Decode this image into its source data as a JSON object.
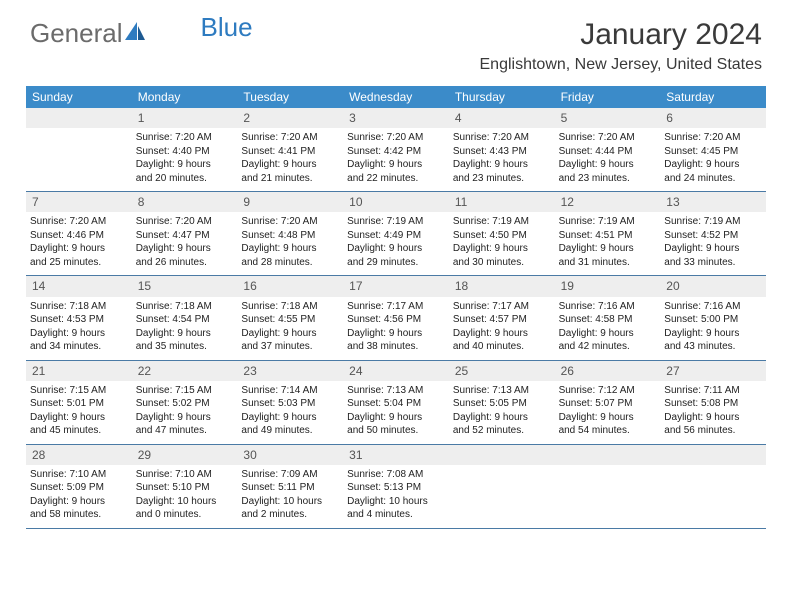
{
  "logo": {
    "text1": "General",
    "text2": "Blue"
  },
  "title": "January 2024",
  "location": "Englishtown, New Jersey, United States",
  "colors": {
    "header_bg": "#3b8bc9",
    "header_text": "#ffffff",
    "daynum_bg": "#eeeeee",
    "week_border": "#4a7aa5",
    "logo_gray": "#6b6b6b",
    "logo_blue": "#2e7bc0"
  },
  "dayHeaders": [
    "Sunday",
    "Monday",
    "Tuesday",
    "Wednesday",
    "Thursday",
    "Friday",
    "Saturday"
  ],
  "weeks": [
    [
      null,
      {
        "n": "1",
        "sr": "Sunrise: 7:20 AM",
        "ss": "Sunset: 4:40 PM",
        "d1": "Daylight: 9 hours",
        "d2": "and 20 minutes."
      },
      {
        "n": "2",
        "sr": "Sunrise: 7:20 AM",
        "ss": "Sunset: 4:41 PM",
        "d1": "Daylight: 9 hours",
        "d2": "and 21 minutes."
      },
      {
        "n": "3",
        "sr": "Sunrise: 7:20 AM",
        "ss": "Sunset: 4:42 PM",
        "d1": "Daylight: 9 hours",
        "d2": "and 22 minutes."
      },
      {
        "n": "4",
        "sr": "Sunrise: 7:20 AM",
        "ss": "Sunset: 4:43 PM",
        "d1": "Daylight: 9 hours",
        "d2": "and 23 minutes."
      },
      {
        "n": "5",
        "sr": "Sunrise: 7:20 AM",
        "ss": "Sunset: 4:44 PM",
        "d1": "Daylight: 9 hours",
        "d2": "and 23 minutes."
      },
      {
        "n": "6",
        "sr": "Sunrise: 7:20 AM",
        "ss": "Sunset: 4:45 PM",
        "d1": "Daylight: 9 hours",
        "d2": "and 24 minutes."
      }
    ],
    [
      {
        "n": "7",
        "sr": "Sunrise: 7:20 AM",
        "ss": "Sunset: 4:46 PM",
        "d1": "Daylight: 9 hours",
        "d2": "and 25 minutes."
      },
      {
        "n": "8",
        "sr": "Sunrise: 7:20 AM",
        "ss": "Sunset: 4:47 PM",
        "d1": "Daylight: 9 hours",
        "d2": "and 26 minutes."
      },
      {
        "n": "9",
        "sr": "Sunrise: 7:20 AM",
        "ss": "Sunset: 4:48 PM",
        "d1": "Daylight: 9 hours",
        "d2": "and 28 minutes."
      },
      {
        "n": "10",
        "sr": "Sunrise: 7:19 AM",
        "ss": "Sunset: 4:49 PM",
        "d1": "Daylight: 9 hours",
        "d2": "and 29 minutes."
      },
      {
        "n": "11",
        "sr": "Sunrise: 7:19 AM",
        "ss": "Sunset: 4:50 PM",
        "d1": "Daylight: 9 hours",
        "d2": "and 30 minutes."
      },
      {
        "n": "12",
        "sr": "Sunrise: 7:19 AM",
        "ss": "Sunset: 4:51 PM",
        "d1": "Daylight: 9 hours",
        "d2": "and 31 minutes."
      },
      {
        "n": "13",
        "sr": "Sunrise: 7:19 AM",
        "ss": "Sunset: 4:52 PM",
        "d1": "Daylight: 9 hours",
        "d2": "and 33 minutes."
      }
    ],
    [
      {
        "n": "14",
        "sr": "Sunrise: 7:18 AM",
        "ss": "Sunset: 4:53 PM",
        "d1": "Daylight: 9 hours",
        "d2": "and 34 minutes."
      },
      {
        "n": "15",
        "sr": "Sunrise: 7:18 AM",
        "ss": "Sunset: 4:54 PM",
        "d1": "Daylight: 9 hours",
        "d2": "and 35 minutes."
      },
      {
        "n": "16",
        "sr": "Sunrise: 7:18 AM",
        "ss": "Sunset: 4:55 PM",
        "d1": "Daylight: 9 hours",
        "d2": "and 37 minutes."
      },
      {
        "n": "17",
        "sr": "Sunrise: 7:17 AM",
        "ss": "Sunset: 4:56 PM",
        "d1": "Daylight: 9 hours",
        "d2": "and 38 minutes."
      },
      {
        "n": "18",
        "sr": "Sunrise: 7:17 AM",
        "ss": "Sunset: 4:57 PM",
        "d1": "Daylight: 9 hours",
        "d2": "and 40 minutes."
      },
      {
        "n": "19",
        "sr": "Sunrise: 7:16 AM",
        "ss": "Sunset: 4:58 PM",
        "d1": "Daylight: 9 hours",
        "d2": "and 42 minutes."
      },
      {
        "n": "20",
        "sr": "Sunrise: 7:16 AM",
        "ss": "Sunset: 5:00 PM",
        "d1": "Daylight: 9 hours",
        "d2": "and 43 minutes."
      }
    ],
    [
      {
        "n": "21",
        "sr": "Sunrise: 7:15 AM",
        "ss": "Sunset: 5:01 PM",
        "d1": "Daylight: 9 hours",
        "d2": "and 45 minutes."
      },
      {
        "n": "22",
        "sr": "Sunrise: 7:15 AM",
        "ss": "Sunset: 5:02 PM",
        "d1": "Daylight: 9 hours",
        "d2": "and 47 minutes."
      },
      {
        "n": "23",
        "sr": "Sunrise: 7:14 AM",
        "ss": "Sunset: 5:03 PM",
        "d1": "Daylight: 9 hours",
        "d2": "and 49 minutes."
      },
      {
        "n": "24",
        "sr": "Sunrise: 7:13 AM",
        "ss": "Sunset: 5:04 PM",
        "d1": "Daylight: 9 hours",
        "d2": "and 50 minutes."
      },
      {
        "n": "25",
        "sr": "Sunrise: 7:13 AM",
        "ss": "Sunset: 5:05 PM",
        "d1": "Daylight: 9 hours",
        "d2": "and 52 minutes."
      },
      {
        "n": "26",
        "sr": "Sunrise: 7:12 AM",
        "ss": "Sunset: 5:07 PM",
        "d1": "Daylight: 9 hours",
        "d2": "and 54 minutes."
      },
      {
        "n": "27",
        "sr": "Sunrise: 7:11 AM",
        "ss": "Sunset: 5:08 PM",
        "d1": "Daylight: 9 hours",
        "d2": "and 56 minutes."
      }
    ],
    [
      {
        "n": "28",
        "sr": "Sunrise: 7:10 AM",
        "ss": "Sunset: 5:09 PM",
        "d1": "Daylight: 9 hours",
        "d2": "and 58 minutes."
      },
      {
        "n": "29",
        "sr": "Sunrise: 7:10 AM",
        "ss": "Sunset: 5:10 PM",
        "d1": "Daylight: 10 hours",
        "d2": "and 0 minutes."
      },
      {
        "n": "30",
        "sr": "Sunrise: 7:09 AM",
        "ss": "Sunset: 5:11 PM",
        "d1": "Daylight: 10 hours",
        "d2": "and 2 minutes."
      },
      {
        "n": "31",
        "sr": "Sunrise: 7:08 AM",
        "ss": "Sunset: 5:13 PM",
        "d1": "Daylight: 10 hours",
        "d2": "and 4 minutes."
      },
      null,
      null,
      null
    ]
  ]
}
